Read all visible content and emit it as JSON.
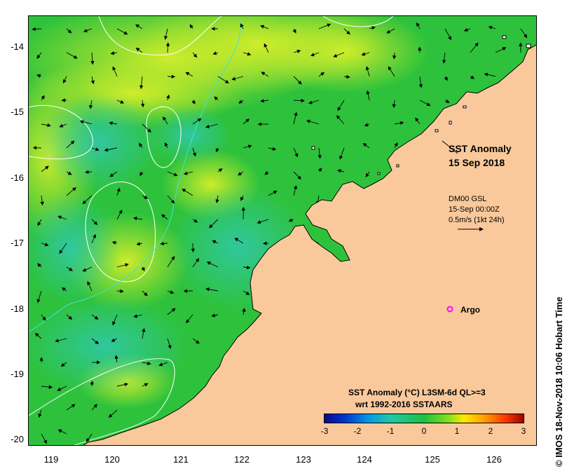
{
  "map": {
    "title_line1": "SST Anomaly",
    "title_line2": "15 Sep 2018",
    "current_legend": {
      "line1": "DM00 GSL",
      "line2": "15-Sep 00:00Z",
      "line3": "0.5m/s (1kt 24h)"
    },
    "argo_label": "Argo",
    "colorbar_title": "SST Anomaly (°C) L3SM-6d QL>=3",
    "colorbar_subtitle": "wrt 1992-2016 SSTAARS",
    "colorbar_ticks": [
      "-3",
      "-2",
      "-1",
      "0",
      "1",
      "2",
      "3"
    ],
    "credit": "© IMOS 18-Nov-2018 10:06 Hobart Time",
    "lat_ticks": [
      "-14",
      "-15",
      "-16",
      "-17",
      "-18",
      "-19",
      "-20"
    ],
    "lon_ticks": [
      "119",
      "120",
      "121",
      "122",
      "123",
      "124",
      "125",
      "126"
    ],
    "colors": {
      "land": "#f9c99c",
      "ocean_base": "#20c040",
      "warm_anomaly": "#c8ec28",
      "cool_anomaly": "#38c8a0",
      "argo_marker": "#ff00ff"
    }
  }
}
